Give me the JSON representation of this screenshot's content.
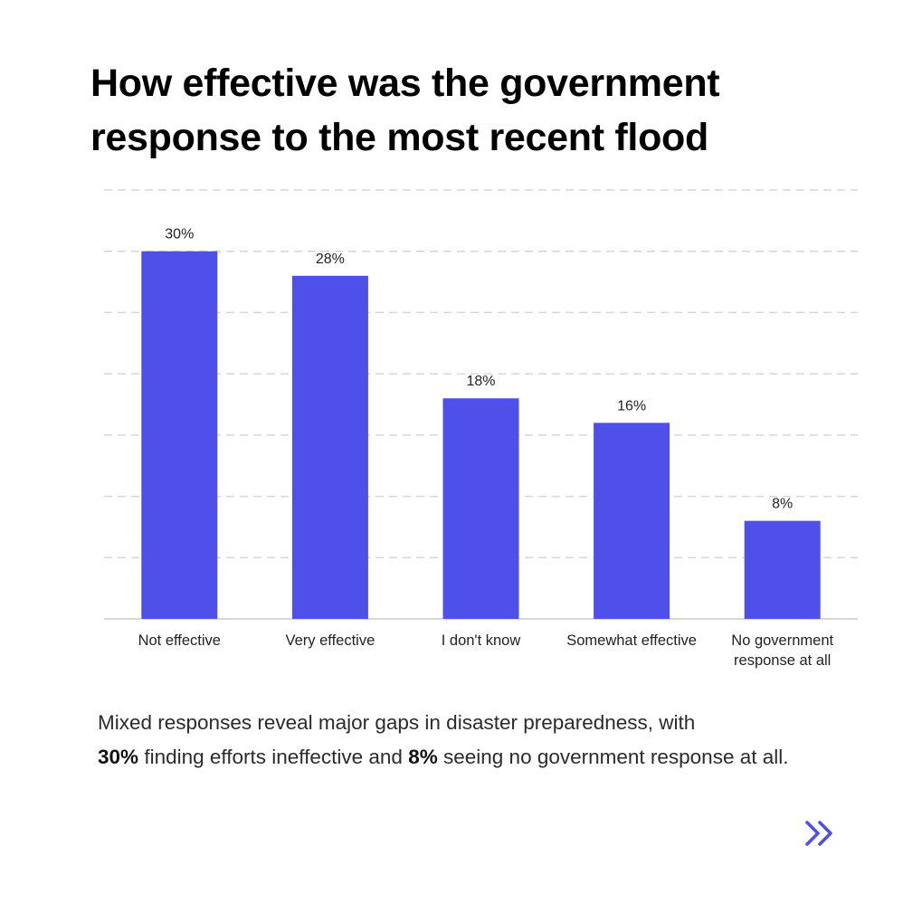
{
  "title_lines": [
    "How effective was the government",
    "response to the most recent flood"
  ],
  "summary": {
    "part1": "Mixed responses reveal major gaps in disaster preparedness, with",
    "highlight1": "30%",
    "part2": "finding efforts ineffective and",
    "highlight2": "8%",
    "part3": "seeing no government response at all."
  },
  "next_icon": "double-chevron-right-icon",
  "colors": {
    "bar": "#4f4fea",
    "grid": "#d6d6d6",
    "axis": "#cccccc",
    "accent": "#4f4fea"
  },
  "chart_data": {
    "type": "bar",
    "title": "How effective was the government response to the most recent flood",
    "categories": [
      [
        "Not effective"
      ],
      [
        "Very effective"
      ],
      [
        "I don't know"
      ],
      [
        "Somewhat effective"
      ],
      [
        "No government",
        "response at all"
      ]
    ],
    "values": [
      30,
      28,
      18,
      16,
      8
    ],
    "value_labels": [
      "30%",
      "28%",
      "18%",
      "16%",
      "8%"
    ],
    "ylim": [
      0,
      35
    ],
    "grid": true,
    "grid_step": 5,
    "xlabel": "",
    "ylabel": ""
  }
}
